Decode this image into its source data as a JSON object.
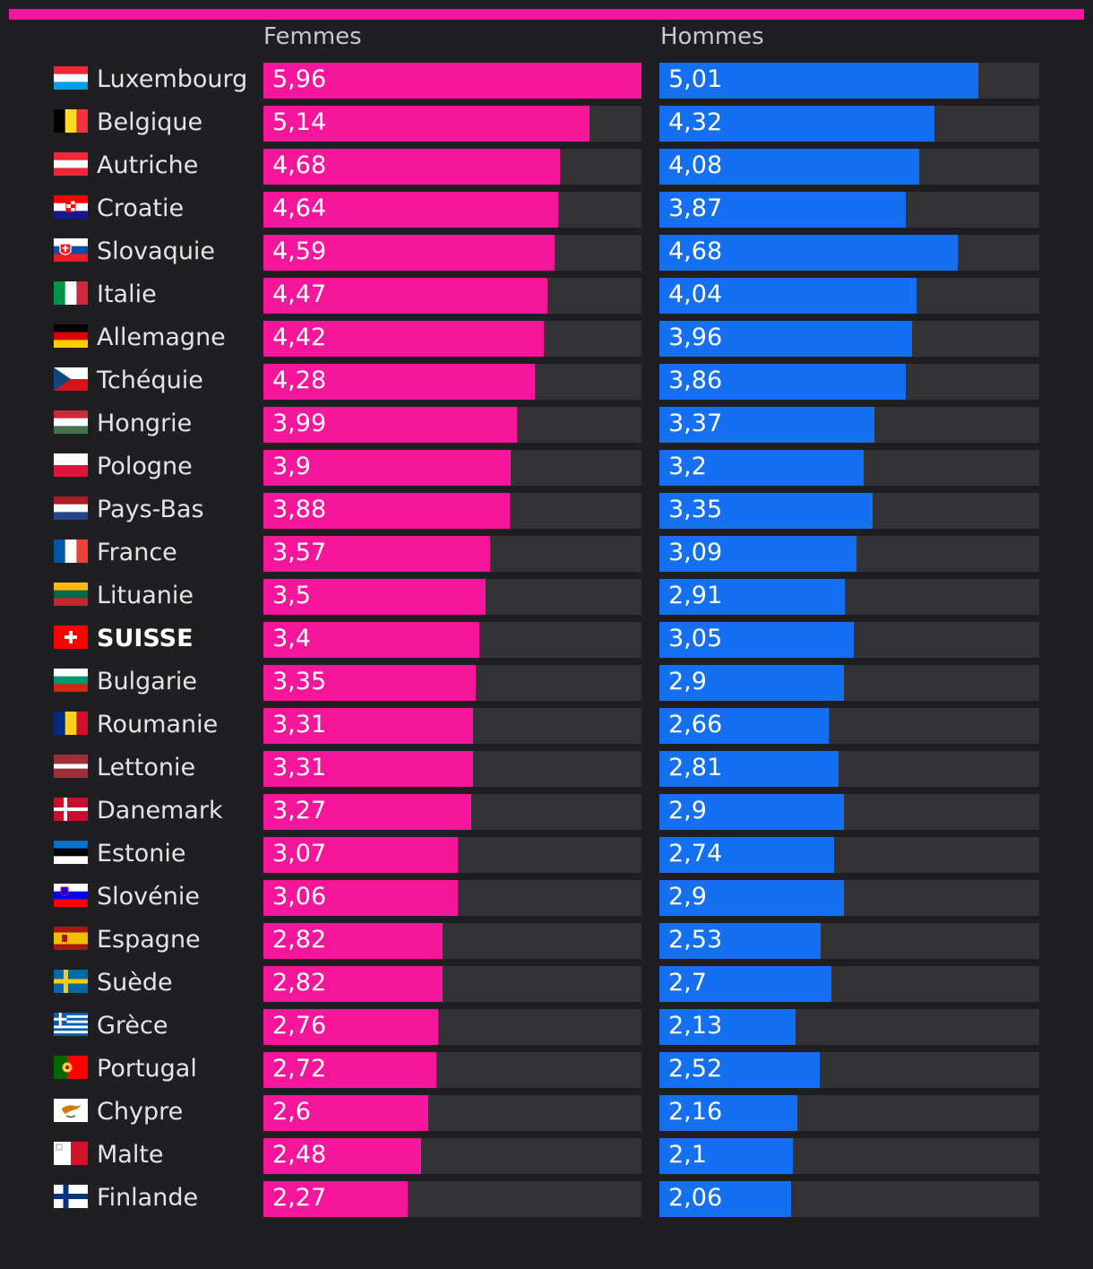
{
  "colors": {
    "femmes": "#f5169b",
    "hommes": "#1470f0",
    "track": "#333335",
    "background": "#1f1f21"
  },
  "chart_data": {
    "type": "bar",
    "orientation": "horizontal",
    "title": "",
    "xlim": [
      0,
      5.96
    ],
    "categories": [
      "Luxembourg",
      "Belgique",
      "Autriche",
      "Croatie",
      "Slovaquie",
      "Italie",
      "Allemagne",
      "Tchéquie",
      "Hongrie",
      "Pologne",
      "Pays-Bas",
      "France",
      "Lituanie",
      "SUISSE",
      "Bulgarie",
      "Roumanie",
      "Lettonie",
      "Danemark",
      "Estonie",
      "Slovénie",
      "Espagne",
      "Suède",
      "Grèce",
      "Portugal",
      "Chypre",
      "Malte",
      "Finlande"
    ],
    "highlight": "SUISSE",
    "flag_icons": [
      "luxembourg-flag-icon",
      "belgium-flag-icon",
      "austria-flag-icon",
      "croatia-flag-icon",
      "slovakia-flag-icon",
      "italy-flag-icon",
      "germany-flag-icon",
      "czechia-flag-icon",
      "hungary-flag-icon",
      "poland-flag-icon",
      "netherlands-flag-icon",
      "france-flag-icon",
      "lithuania-flag-icon",
      "switzerland-flag-icon",
      "bulgaria-flag-icon",
      "romania-flag-icon",
      "latvia-flag-icon",
      "denmark-flag-icon",
      "estonia-flag-icon",
      "slovenia-flag-icon",
      "spain-flag-icon",
      "sweden-flag-icon",
      "greece-flag-icon",
      "portugal-flag-icon",
      "cyprus-flag-icon",
      "malta-flag-icon",
      "finland-flag-icon"
    ],
    "series": [
      {
        "name": "Femmes",
        "values": [
          5.96,
          5.14,
          4.68,
          4.64,
          4.59,
          4.47,
          4.42,
          4.28,
          3.99,
          3.9,
          3.88,
          3.57,
          3.5,
          3.4,
          3.35,
          3.31,
          3.31,
          3.27,
          3.07,
          3.06,
          2.82,
          2.82,
          2.76,
          2.72,
          2.6,
          2.48,
          2.27
        ],
        "labels": [
          "5,96",
          "5,14",
          "4,68",
          "4,64",
          "4,59",
          "4,47",
          "4,42",
          "4,28",
          "3,99",
          "3,9",
          "3,88",
          "3,57",
          "3,5",
          "3,4",
          "3,35",
          "3,31",
          "3,31",
          "3,27",
          "3,07",
          "3,06",
          "2,82",
          "2,82",
          "2,76",
          "2,72",
          "2,6",
          "2,48",
          "2,27"
        ]
      },
      {
        "name": "Hommes",
        "values": [
          5.01,
          4.32,
          4.08,
          3.87,
          4.68,
          4.04,
          3.96,
          3.86,
          3.37,
          3.2,
          3.35,
          3.09,
          2.91,
          3.05,
          2.9,
          2.66,
          2.81,
          2.9,
          2.74,
          2.9,
          2.53,
          2.7,
          2.13,
          2.52,
          2.16,
          2.1,
          2.06
        ],
        "labels": [
          "5,01",
          "4,32",
          "4,08",
          "3,87",
          "4,68",
          "4,04",
          "3,96",
          "3,86",
          "3,37",
          "3,2",
          "3,35",
          "3,09",
          "2,91",
          "3,05",
          "2,9",
          "2,66",
          "2,81",
          "2,9",
          "2,74",
          "2,9",
          "2,53",
          "2,7",
          "2,13",
          "2,52",
          "2,16",
          "2,1",
          "2,06"
        ]
      }
    ]
  }
}
